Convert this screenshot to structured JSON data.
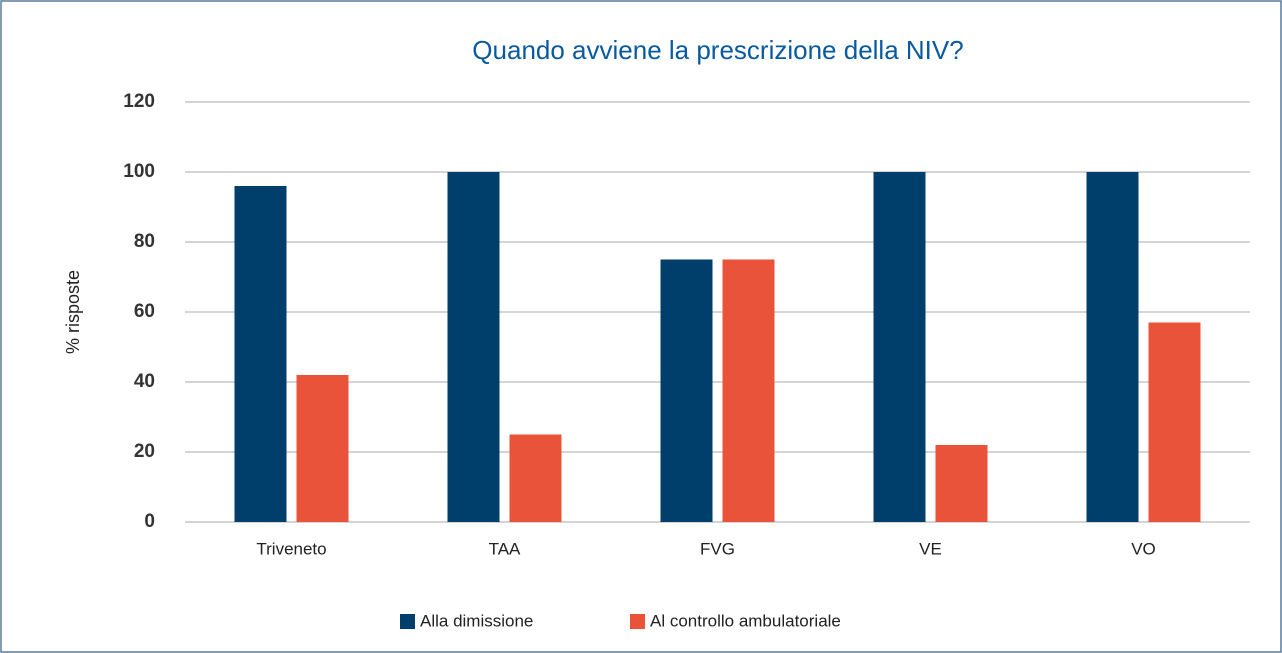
{
  "chart_data": {
    "type": "bar",
    "title": "Quando avviene la prescrizione della NIV?",
    "y_label": "% risposte",
    "categories": [
      "Triveneto",
      "TAA",
      "FVG",
      "VE",
      "VO"
    ],
    "series": [
      {
        "name": "Alla dimissione",
        "color": "#003f6b",
        "values": [
          96,
          100,
          75,
          100,
          100
        ]
      },
      {
        "name": "Al controllo ambulatoriale",
        "color": "#e8533a",
        "values": [
          42,
          25,
          75,
          22,
          57
        ]
      }
    ],
    "ylim": [
      0,
      120
    ],
    "yticks": [
      0,
      20,
      40,
      60,
      80,
      100,
      120
    ],
    "grid": true,
    "legend": "bottom"
  }
}
